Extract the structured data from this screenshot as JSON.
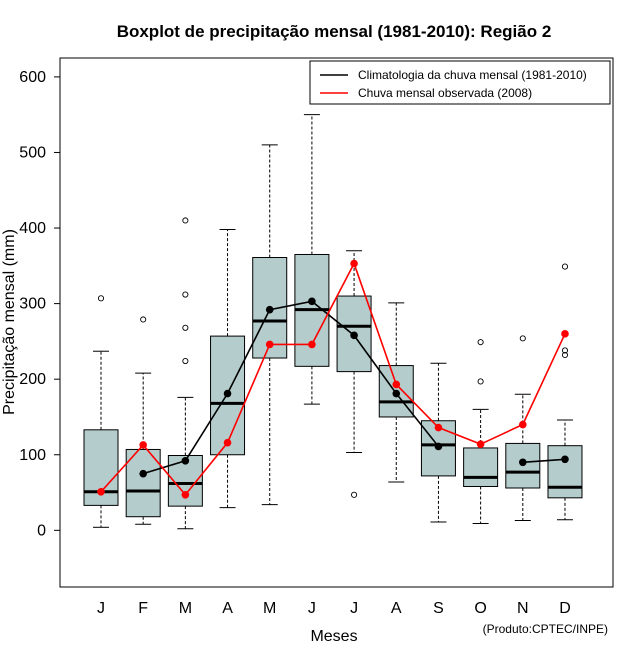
{
  "chart_data": {
    "type": "boxplot",
    "title": "Boxplot de precipitação mensal (1981-2010): Região 2",
    "xlabel": "Meses",
    "ylabel": "Precipitação mensal (mm)",
    "credit": "(Produto:CPTEC/INPE)",
    "ylim": [
      -75,
      625
    ],
    "yticks": [
      0,
      100,
      200,
      300,
      400,
      500,
      600
    ],
    "categories": [
      "J",
      "F",
      "M",
      "A",
      "M",
      "J",
      "J",
      "A",
      "S",
      "O",
      "N",
      "D"
    ],
    "box_fill": "#b4cccb",
    "boxes": [
      {
        "whisker_low": 4,
        "q1": 33,
        "median": 51,
        "q3": 133,
        "whisker_high": 237,
        "outliers": [
          307
        ]
      },
      {
        "whisker_low": 8,
        "q1": 18,
        "median": 52,
        "q3": 107,
        "whisker_high": 208,
        "outliers": [
          279
        ]
      },
      {
        "whisker_low": 2,
        "q1": 32,
        "median": 62,
        "q3": 99,
        "whisker_high": 176,
        "outliers": [
          224,
          268,
          312,
          410
        ]
      },
      {
        "whisker_low": 30,
        "q1": 100,
        "median": 168,
        "q3": 257,
        "whisker_high": 398,
        "outliers": []
      },
      {
        "whisker_low": 34,
        "q1": 228,
        "median": 277,
        "q3": 361,
        "whisker_high": 510,
        "outliers": []
      },
      {
        "whisker_low": 167,
        "q1": 217,
        "median": 292,
        "q3": 365,
        "whisker_high": 550,
        "outliers": []
      },
      {
        "whisker_low": 103,
        "q1": 210,
        "median": 270,
        "q3": 310,
        "whisker_high": 370,
        "outliers": [
          47
        ]
      },
      {
        "whisker_low": 64,
        "q1": 150,
        "median": 170,
        "q3": 218,
        "whisker_high": 301,
        "outliers": []
      },
      {
        "whisker_low": 11,
        "q1": 72,
        "median": 113,
        "q3": 145,
        "whisker_high": 221,
        "outliers": []
      },
      {
        "whisker_low": 9,
        "q1": 58,
        "median": 70,
        "q3": 109,
        "whisker_high": 160,
        "outliers": [
          197,
          249
        ]
      },
      {
        "whisker_low": 13,
        "q1": 56,
        "median": 77,
        "q3": 115,
        "whisker_high": 180,
        "outliers": [
          254
        ]
      },
      {
        "whisker_low": 14,
        "q1": 43,
        "median": 57,
        "q3": 112,
        "whisker_high": 146,
        "outliers": [
          232,
          238,
          349
        ]
      }
    ],
    "series": [
      {
        "name": "Climatologia da chuva mensal (1981-2010)",
        "color": "#000000",
        "segments": [
          [
            [
              2,
              75
            ],
            [
              3,
              92
            ],
            [
              4,
              181
            ],
            [
              5,
              292
            ],
            [
              6,
              303
            ],
            [
              7,
              258
            ],
            [
              8,
              181
            ],
            [
              9,
              111
            ]
          ],
          [
            [
              11,
              90
            ],
            [
              12,
              94
            ]
          ]
        ]
      },
      {
        "name": "Chuva mensal observada (2008)",
        "color": "#ff0000",
        "segments": [
          [
            [
              1,
              51
            ],
            [
              2,
              113
            ],
            [
              3,
              47
            ],
            [
              4,
              116
            ],
            [
              5,
              246
            ],
            [
              6,
              246
            ],
            [
              7,
              353
            ],
            [
              8,
              193
            ],
            [
              9,
              136
            ],
            [
              10,
              114
            ],
            [
              11,
              140
            ],
            [
              12,
              260
            ]
          ]
        ]
      }
    ],
    "legend_position": "top-right"
  }
}
